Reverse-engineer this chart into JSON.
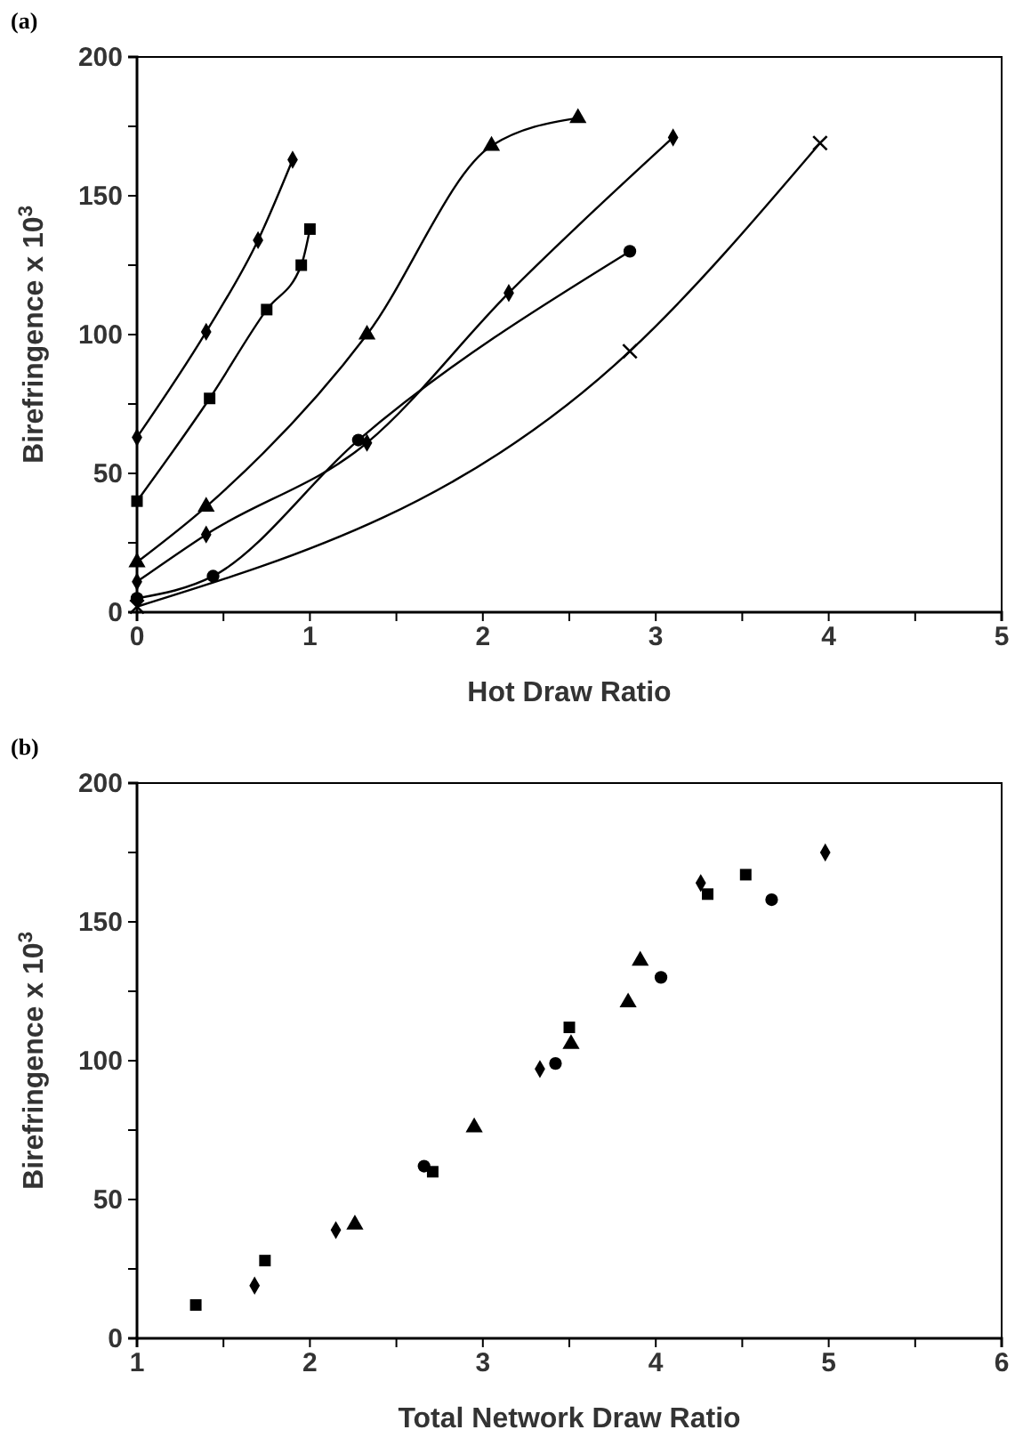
{
  "chart_data": [
    {
      "type": "line",
      "title": "(a)",
      "xlabel": "Hot Draw Ratio",
      "ylabel": "Birefringence x 10$^{3}$",
      "line_style": "solid",
      "xlim": [
        0,
        5
      ],
      "xticks": [
        0,
        {
          "value": 0.5,
          "label": null
        },
        1,
        {
          "value": 1.5,
          "label": null
        },
        2,
        {
          "value": 2.5,
          "label": null
        },
        3,
        {
          "value": 3.5,
          "label": null
        },
        4,
        {
          "value": 4.5,
          "label": null
        },
        5
      ],
      "ylim": [
        0,
        200
      ],
      "yticks": [
        0,
        {
          "value": 25,
          "label": null
        },
        50,
        {
          "value": 75,
          "label": null
        },
        100,
        {
          "value": 125,
          "label": null
        },
        150,
        {
          "value": 175,
          "label": null
        },
        200
      ],
      "series": [
        {
          "color": "#000000",
          "marker": "diamond",
          "x": [
            0,
            0.4,
            0.7,
            0.9
          ],
          "values": [
            63,
            101,
            134,
            163
          ]
        },
        {
          "color": "#000000",
          "marker": "square",
          "x": [
            0,
            0.42,
            0.75,
            0.95,
            1.0
          ],
          "values": [
            40,
            77,
            109,
            125,
            138
          ]
        },
        {
          "color": "#000000",
          "marker": "triangle",
          "x": [
            0,
            0.4,
            1.33,
            2.05,
            2.55
          ],
          "values": [
            18,
            38,
            100,
            168,
            178
          ]
        },
        {
          "color": "#000000",
          "marker": "diamond",
          "x": [
            0,
            0.4,
            1.33,
            2.15,
            3.1
          ],
          "values": [
            11,
            28,
            61,
            115,
            171
          ]
        },
        {
          "color": "#000000",
          "marker": "circle",
          "x": [
            0,
            0.44,
            1.28,
            2.85
          ],
          "values": [
            5,
            13,
            62,
            130
          ]
        },
        {
          "color": "#000000",
          "marker": "cross",
          "x": [
            0,
            2.85,
            3.95
          ],
          "values": [
            2,
            94,
            169
          ]
        }
      ]
    },
    {
      "type": "scatter",
      "title": "(b)",
      "xlabel": "Total Network Draw Ratio",
      "ylabel": "Birefringence x 10$^{3}$",
      "xlim": [
        1,
        6
      ],
      "xticks": [
        1,
        {
          "value": 1.5,
          "label": null
        },
        2,
        {
          "value": 2.5,
          "label": null
        },
        3,
        {
          "value": 3.5,
          "label": null
        },
        4,
        {
          "value": 4.5,
          "label": null
        },
        5,
        {
          "value": 5.5,
          "label": null
        },
        6
      ],
      "ylim": [
        0,
        200
      ],
      "yticks": [
        0,
        {
          "value": 25,
          "label": null
        },
        50,
        {
          "value": 75,
          "label": null
        },
        100,
        {
          "value": 125,
          "label": null
        },
        150,
        {
          "value": 175,
          "label": null
        },
        200
      ],
      "series": [
        {
          "color": "#000000",
          "marker": "diamond",
          "x": [
            1.68,
            2.15,
            3.33,
            4.26,
            4.98
          ],
          "values": [
            19,
            39,
            97,
            164,
            175
          ]
        },
        {
          "color": "#000000",
          "marker": "square",
          "x": [
            1.34,
            1.74,
            2.71,
            3.5,
            4.3,
            4.52
          ],
          "values": [
            12,
            28,
            60,
            112,
            160,
            167
          ]
        },
        {
          "color": "#000000",
          "marker": "triangle",
          "x": [
            2.26,
            2.95,
            3.51,
            3.84,
            3.91
          ],
          "values": [
            41,
            76,
            106,
            121,
            136
          ]
        },
        {
          "color": "#000000",
          "marker": "circle",
          "x": [
            2.66,
            3.42,
            4.03,
            4.67
          ],
          "values": [
            62,
            99,
            130,
            158
          ]
        }
      ]
    }
  ]
}
